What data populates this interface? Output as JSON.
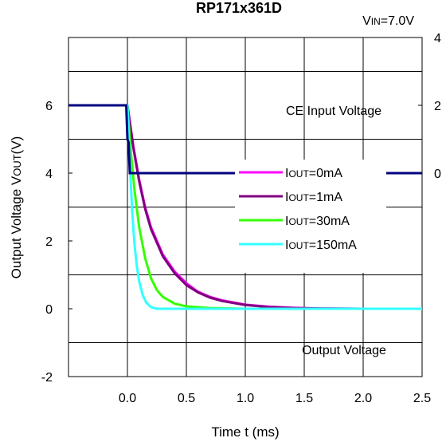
{
  "title": "RP171x361D",
  "condition": "V IN=7.0V",
  "condition_parts": {
    "v": "V",
    "sub": "IN",
    "rest": "=7.0V"
  },
  "chart_data": {
    "type": "line",
    "xlabel": "Time t (ms)",
    "ylabel_left": {
      "prefix": "Output Voltage V",
      "sub": "OUT",
      "suffix": "(V)"
    },
    "ylabel_right": "",
    "xlim": [
      -0.5,
      2.5
    ],
    "ylim_left": [
      -2,
      8
    ],
    "ylim_right": [
      -6,
      4
    ],
    "x_ticks": [
      "0.0",
      "0.5",
      "1.0",
      "1.5",
      "2.0",
      "2.5"
    ],
    "x_tick_values": [
      0.0,
      0.5,
      1.0,
      1.5,
      2.0,
      2.5
    ],
    "y_ticks_left": [
      "-2",
      "0",
      "2",
      "4",
      "6"
    ],
    "y_tick_values_left": [
      -2,
      0,
      2,
      4,
      6
    ],
    "y_ticks_right": [
      "0",
      "2",
      "4"
    ],
    "y_tick_values_right": [
      0,
      2,
      4
    ],
    "grid": true,
    "annotations": [
      "CE Input Voltage",
      "Output Voltage"
    ],
    "ce_input": {
      "name": "CE Input Voltage",
      "color": "#00007f",
      "x": [
        -0.5,
        -0.01,
        0.0,
        0.01,
        0.02,
        2.5
      ],
      "y": [
        2.0,
        2.0,
        1.0,
        0.9,
        0.0,
        0.0
      ]
    },
    "series": [
      {
        "name": "IOUT=0mA",
        "legend_parts": {
          "prefix": "I",
          "sub": "OUT",
          "suffix": "=0mA"
        },
        "color": "#ff00ff",
        "x": [
          -0.5,
          0.0,
          0.05,
          0.1,
          0.15,
          0.2,
          0.3,
          0.4,
          0.5,
          0.6,
          0.7,
          0.8,
          1.0,
          1.2,
          1.4,
          1.6,
          2.0,
          2.5
        ],
        "y": [
          6.0,
          6.0,
          4.8,
          3.8,
          3.0,
          2.4,
          1.6,
          1.1,
          0.75,
          0.5,
          0.35,
          0.25,
          0.12,
          0.06,
          0.03,
          0.01,
          0.0,
          0.0
        ]
      },
      {
        "name": "IOUT=1mA",
        "legend_parts": {
          "prefix": "I",
          "sub": "OUT",
          "suffix": "=1mA"
        },
        "color": "#800080",
        "x": [
          -0.5,
          0.0,
          0.05,
          0.1,
          0.15,
          0.2,
          0.3,
          0.4,
          0.5,
          0.6,
          0.7,
          0.8,
          1.0,
          1.2,
          1.4,
          1.6,
          2.0,
          2.5
        ],
        "y": [
          6.0,
          6.0,
          4.75,
          3.75,
          2.95,
          2.35,
          1.55,
          1.05,
          0.7,
          0.48,
          0.33,
          0.23,
          0.11,
          0.05,
          0.02,
          0.01,
          0.0,
          0.0
        ]
      },
      {
        "name": "IOUT=30mA",
        "legend_parts": {
          "prefix": "I",
          "sub": "OUT",
          "suffix": "=30mA"
        },
        "color": "#33ff00",
        "x": [
          -0.5,
          0.0,
          0.03,
          0.06,
          0.1,
          0.15,
          0.2,
          0.25,
          0.3,
          0.4,
          0.5,
          0.7,
          1.0,
          2.5
        ],
        "y": [
          6.0,
          6.0,
          4.6,
          3.5,
          2.4,
          1.5,
          0.9,
          0.55,
          0.35,
          0.15,
          0.07,
          0.02,
          0.0,
          0.0
        ]
      },
      {
        "name": "IOUT=150mA",
        "legend_parts": {
          "prefix": "I",
          "sub": "OUT",
          "suffix": "=150mA"
        },
        "color": "#33ffff",
        "x": [
          -0.5,
          0.0,
          0.02,
          0.04,
          0.06,
          0.08,
          0.1,
          0.13,
          0.16,
          0.2,
          0.25,
          2.5
        ],
        "y": [
          6.0,
          6.0,
          4.3,
          2.9,
          1.9,
          1.25,
          0.8,
          0.4,
          0.18,
          0.05,
          0.0,
          0.0
        ]
      }
    ]
  }
}
